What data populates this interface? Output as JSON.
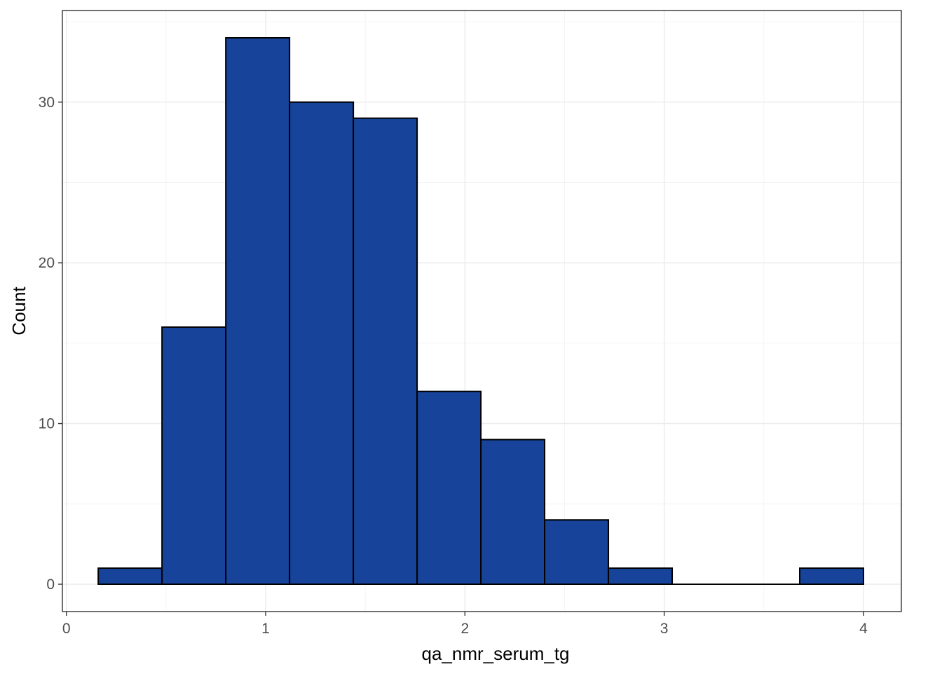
{
  "chart_data": {
    "type": "bar",
    "title": "",
    "xlabel": "qa_nmr_serum_tg",
    "ylabel": "Count",
    "xlim": [
      -0.02,
      4.19
    ],
    "ylim": [
      -1.7,
      35.7
    ],
    "x_ticks": [
      0,
      1,
      2,
      3,
      4
    ],
    "y_ticks": [
      0,
      10,
      20,
      30
    ],
    "x_tick_labels": [
      "0",
      "1",
      "2",
      "3",
      "4"
    ],
    "y_tick_labels": [
      "0",
      "10",
      "20",
      "30"
    ],
    "grid": true,
    "bins": [
      {
        "x0": 0.16,
        "x1": 0.48,
        "count": 1
      },
      {
        "x0": 0.48,
        "x1": 0.8,
        "count": 16
      },
      {
        "x0": 0.8,
        "x1": 1.12,
        "count": 34
      },
      {
        "x0": 1.12,
        "x1": 1.44,
        "count": 30
      },
      {
        "x0": 1.44,
        "x1": 1.76,
        "count": 29
      },
      {
        "x0": 1.76,
        "x1": 2.08,
        "count": 12
      },
      {
        "x0": 2.08,
        "x1": 2.4,
        "count": 9
      },
      {
        "x0": 2.4,
        "x1": 2.72,
        "count": 4
      },
      {
        "x0": 2.72,
        "x1": 3.04,
        "count": 1
      },
      {
        "x0": 3.04,
        "x1": 3.36,
        "count": 0
      },
      {
        "x0": 3.36,
        "x1": 3.68,
        "count": 0
      },
      {
        "x0": 3.68,
        "x1": 4.0,
        "count": 1
      }
    ],
    "colors": {
      "bar_fill": "#17449A",
      "bar_stroke": "#000000",
      "grid_major": "#EBEBEB",
      "grid_minor": "#F4F4F4",
      "panel_border": "#333333",
      "tick_label": "#4D4D4D",
      "axis_title": "#000000"
    }
  }
}
